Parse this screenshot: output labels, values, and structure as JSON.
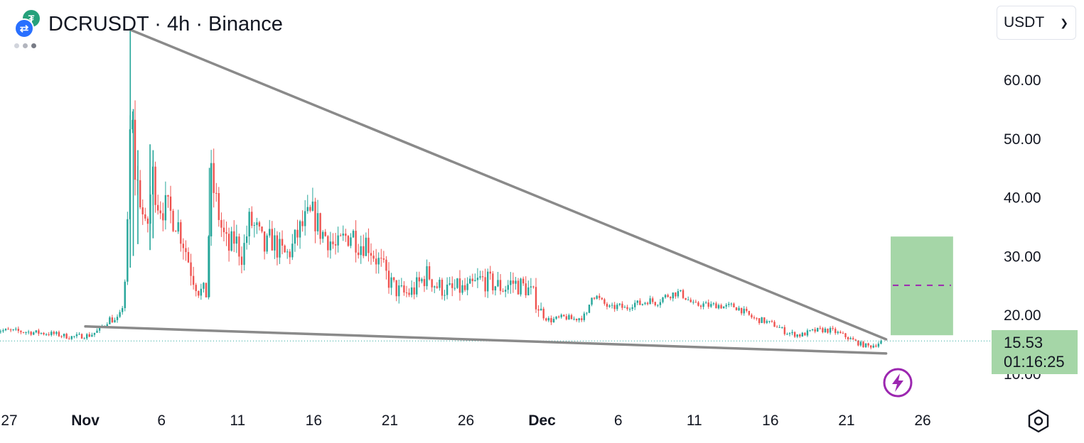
{
  "header": {
    "symbol": "DCRUSDT",
    "interval": "4h",
    "exchange": "Binance",
    "title": "DCRUSDT · 4h · Binance",
    "base_icon": "decred-coin-icon",
    "quote_icon": "tether-coin-icon",
    "base_glyph": "⇄",
    "quote_glyph": "₮"
  },
  "toolbar": {
    "currency_selected": "USDT",
    "settings_icon": "hexagon-settings-icon",
    "bolt_icon": "lightning-bolt-icon"
  },
  "last_price": {
    "price": "15.53",
    "countdown": "01:16:25"
  },
  "colors": {
    "up": "#26a69a",
    "down": "#ef5350",
    "trendline": "#8a8a8a",
    "target_box": "#a5d6a7",
    "target_line": "#9c27b0",
    "last_price_line": "#26a69a",
    "bolt": "#9c27b0"
  },
  "chart_data": {
    "type": "candlestick",
    "y_axis": {
      "ticks": [
        "60.00",
        "50.00",
        "40.00",
        "30.00",
        "20.00",
        "10.00"
      ],
      "tick_values": [
        60,
        50,
        40,
        30,
        20,
        10
      ],
      "range": [
        7,
        71
      ]
    },
    "x_axis": {
      "ticks": [
        {
          "label": "27",
          "day": -5,
          "bold": false
        },
        {
          "label": "Nov",
          "day": 0,
          "bold": true
        },
        {
          "label": "6",
          "day": 5,
          "bold": false
        },
        {
          "label": "11",
          "day": 10,
          "bold": false
        },
        {
          "label": "16",
          "day": 15,
          "bold": false
        },
        {
          "label": "21",
          "day": 20,
          "bold": false
        },
        {
          "label": "26",
          "day": 25,
          "bold": false
        },
        {
          "label": "Dec",
          "day": 30,
          "bold": true
        },
        {
          "label": "6",
          "day": 35,
          "bold": false
        },
        {
          "label": "11",
          "day": 40,
          "bold": false
        },
        {
          "label": "16",
          "day": 45,
          "bold": false
        },
        {
          "label": "21",
          "day": 50,
          "bold": false
        },
        {
          "label": "26",
          "day": 55,
          "bold": false
        }
      ],
      "range": [
        -5.2,
        60
      ]
    },
    "anchors": [
      [
        -6,
        17.4
      ],
      [
        -4,
        17.1
      ],
      [
        -2,
        16.7
      ],
      [
        -1,
        16.2
      ],
      [
        0.3,
        16.5
      ],
      [
        0.8,
        17.2
      ],
      [
        1.2,
        18.2
      ],
      [
        1.6,
        19.3
      ],
      [
        2.0,
        18.8
      ],
      [
        2.4,
        20.5
      ],
      [
        2.6,
        26
      ],
      [
        2.8,
        36
      ],
      [
        3.0,
        58
      ],
      [
        3.2,
        45
      ],
      [
        3.6,
        40
      ],
      [
        4.0,
        33
      ],
      [
        4.4,
        44
      ],
      [
        4.8,
        39
      ],
      [
        5.3,
        38
      ],
      [
        6.0,
        36
      ],
      [
        6.5,
        32
      ],
      [
        7.0,
        27
      ],
      [
        7.5,
        24
      ],
      [
        8.0,
        23.5
      ],
      [
        8.2,
        44
      ],
      [
        8.6,
        39
      ],
      [
        9.0,
        34
      ],
      [
        9.4,
        31
      ],
      [
        9.8,
        33
      ],
      [
        10.3,
        30
      ],
      [
        10.8,
        36
      ],
      [
        11.3,
        34
      ],
      [
        11.8,
        31
      ],
      [
        12.2,
        33
      ],
      [
        12.7,
        31
      ],
      [
        13.2,
        30
      ],
      [
        13.6,
        31.5
      ],
      [
        14.0,
        34
      ],
      [
        14.5,
        36
      ],
      [
        15.0,
        37
      ],
      [
        15.5,
        34
      ],
      [
        16.0,
        33
      ],
      [
        16.5,
        31
      ],
      [
        17.0,
        33
      ],
      [
        17.5,
        34
      ],
      [
        18.0,
        32
      ],
      [
        18.5,
        32.5
      ],
      [
        19.0,
        30
      ],
      [
        19.5,
        28
      ],
      [
        20.0,
        25.5
      ],
      [
        20.5,
        24
      ],
      [
        21.0,
        23.5
      ],
      [
        21.5,
        24
      ],
      [
        22.0,
        25.5
      ],
      [
        22.5,
        27
      ],
      [
        23.0,
        25
      ],
      [
        23.5,
        24.5
      ],
      [
        24.0,
        24
      ],
      [
        24.5,
        24.5
      ],
      [
        25.0,
        24
      ],
      [
        25.5,
        25
      ],
      [
        26.0,
        26
      ],
      [
        26.5,
        25.5
      ],
      [
        27.0,
        25
      ],
      [
        27.5,
        24.5
      ],
      [
        28.0,
        25.5
      ],
      [
        28.5,
        25
      ],
      [
        29.0,
        24.5
      ],
      [
        29.5,
        23
      ],
      [
        30.0,
        20
      ],
      [
        30.5,
        19
      ],
      [
        31.0,
        19.3
      ],
      [
        31.5,
        19.6
      ],
      [
        32.0,
        19.2
      ],
      [
        32.5,
        19.5
      ],
      [
        33.0,
        20
      ],
      [
        33.2,
        23.5
      ],
      [
        33.6,
        23
      ],
      [
        34.0,
        22
      ],
      [
        34.5,
        21
      ],
      [
        35.0,
        21.5
      ],
      [
        35.5,
        21
      ],
      [
        36.0,
        22
      ],
      [
        36.5,
        21.8
      ],
      [
        37.0,
        22.5
      ],
      [
        37.5,
        22
      ],
      [
        38.0,
        23
      ],
      [
        38.5,
        23.5
      ],
      [
        39.0,
        23.8
      ],
      [
        39.5,
        22.8
      ],
      [
        40.0,
        21.5
      ],
      [
        40.5,
        21.8
      ],
      [
        41.0,
        21.5
      ],
      [
        41.5,
        21.7
      ],
      [
        42.0,
        21.3
      ],
      [
        42.5,
        21.5
      ],
      [
        43.0,
        21
      ],
      [
        43.5,
        20
      ],
      [
        44.0,
        19.2
      ],
      [
        44.5,
        19
      ],
      [
        45.0,
        18.5
      ],
      [
        45.5,
        18
      ],
      [
        46.0,
        17
      ],
      [
        46.5,
        16.7
      ],
      [
        47.0,
        16.5
      ],
      [
        47.5,
        17
      ],
      [
        48.0,
        17.3
      ],
      [
        48.5,
        17.4
      ],
      [
        49.0,
        17.3
      ],
      [
        49.5,
        16.8
      ],
      [
        50.0,
        16.2
      ],
      [
        50.5,
        15.5
      ],
      [
        51.0,
        14.9
      ],
      [
        51.5,
        14.6
      ],
      [
        52.0,
        15
      ],
      [
        52.3,
        15.53
      ]
    ],
    "spikes": [
      {
        "day": 2.95,
        "high": 68.5,
        "low": 28
      },
      {
        "day": 3.15,
        "high": 55,
        "low": 30
      },
      {
        "day": 3.45,
        "high": 48,
        "low": 32
      },
      {
        "day": 4.25,
        "high": 49,
        "low": 31
      },
      {
        "day": 4.45,
        "high": 48,
        "low": 33
      },
      {
        "day": 8.15,
        "high": 45,
        "low": 23
      }
    ],
    "trendlines": [
      {
        "from": [
          2.95,
          68.5
        ],
        "to": [
          52.6,
          15.8
        ]
      },
      {
        "from": [
          0.0,
          18.0
        ],
        "to": [
          52.6,
          13.4
        ]
      }
    ],
    "target_box": {
      "day_from": 52.9,
      "day_to": 57.0,
      "price_from": 16.5,
      "price_to": 33.3
    },
    "target_line": {
      "day_from": 52.9,
      "day_to": 57.0,
      "price": 25.0
    }
  }
}
